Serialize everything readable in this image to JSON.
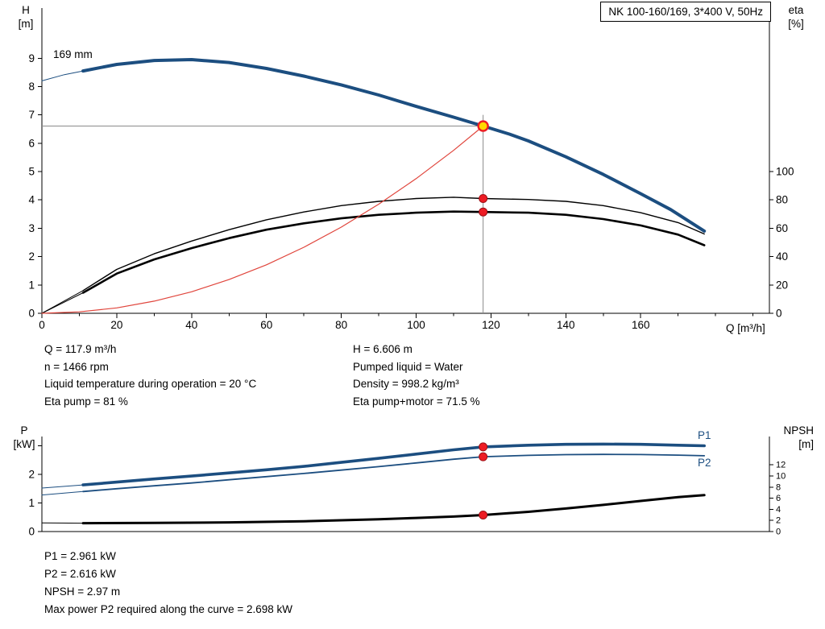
{
  "chart_data": [
    {
      "id": "pump",
      "type": "line",
      "title": "NK 100-160/169, 3*400 V, 50Hz",
      "x_unit": "Q [m³/h]",
      "y_left_unit": [
        "H",
        "[m]"
      ],
      "y_right_unit": [
        "eta",
        "[%]"
      ],
      "xlim": [
        0,
        194.4
      ],
      "ylim_left": [
        0,
        10.77
      ],
      "ylim_right": [
        0,
        215.4
      ],
      "grid": false,
      "x_ticks": [
        0,
        20,
        40,
        60,
        80,
        100,
        120,
        140,
        160
      ],
      "x_minor_ticks": [
        10,
        30,
        50,
        70,
        90,
        110,
        130,
        150,
        170,
        180,
        190
      ],
      "y_left_ticks": [
        0,
        1,
        2,
        3,
        4,
        5,
        6,
        7,
        8,
        9
      ],
      "y_right_ticks": [
        0,
        20,
        40,
        60,
        80,
        100
      ],
      "annotations": [
        {
          "text": "169 mm",
          "role": "impeller-diameter-label"
        }
      ],
      "series": [
        {
          "name": "head-leadin",
          "axis": "left",
          "color": "blue",
          "width": 1,
          "points": [
            [
              0,
              8.2
            ],
            [
              6,
              8.42
            ],
            [
              11,
              8.55
            ]
          ]
        },
        {
          "name": "head-169mm",
          "axis": "left",
          "color": "blue",
          "width": 4,
          "points": [
            [
              11,
              8.55
            ],
            [
              20,
              8.78
            ],
            [
              30,
              8.92
            ],
            [
              40,
              8.95
            ],
            [
              50,
              8.85
            ],
            [
              60,
              8.64
            ],
            [
              70,
              8.37
            ],
            [
              80,
              8.06
            ],
            [
              90,
              7.7
            ],
            [
              100,
              7.3
            ],
            [
              110,
              6.92
            ],
            [
              117.9,
              6.606
            ],
            [
              125,
              6.32
            ],
            [
              130,
              6.08
            ],
            [
              140,
              5.52
            ],
            [
              150,
              4.9
            ],
            [
              160,
              4.22
            ],
            [
              168,
              3.66
            ],
            [
              177,
              2.9
            ]
          ]
        },
        {
          "name": "eta-pump-leadin",
          "axis": "right",
          "color": "black",
          "width": 1,
          "points": [
            [
              0,
              0
            ],
            [
              11,
              16
            ]
          ]
        },
        {
          "name": "eta-pump",
          "axis": "right",
          "color": "black",
          "width": 1.4,
          "points": [
            [
              11,
              16
            ],
            [
              20,
              31
            ],
            [
              30,
              42
            ],
            [
              40,
              51
            ],
            [
              50,
              59
            ],
            [
              60,
              66
            ],
            [
              70,
              71.5
            ],
            [
              80,
              76
            ],
            [
              90,
              79
            ],
            [
              100,
              81
            ],
            [
              110,
              81.9
            ],
            [
              117.9,
              81
            ],
            [
              130,
              80.3
            ],
            [
              140,
              79
            ],
            [
              150,
              76
            ],
            [
              160,
              71
            ],
            [
              170,
              64
            ],
            [
              177,
              56
            ]
          ]
        },
        {
          "name": "eta-pump-motor-leadin",
          "axis": "right",
          "color": "black",
          "width": 1,
          "points": [
            [
              0,
              0
            ],
            [
              11,
              14.5
            ]
          ]
        },
        {
          "name": "eta-pump-motor",
          "axis": "right",
          "color": "black",
          "width": 2.6,
          "points": [
            [
              11,
              14.5
            ],
            [
              20,
              28
            ],
            [
              30,
              38
            ],
            [
              40,
              46
            ],
            [
              50,
              53
            ],
            [
              60,
              59
            ],
            [
              70,
              63.5
            ],
            [
              80,
              67
            ],
            [
              90,
              69.5
            ],
            [
              100,
              71
            ],
            [
              110,
              71.8
            ],
            [
              117.9,
              71.5
            ],
            [
              130,
              71
            ],
            [
              140,
              69.5
            ],
            [
              150,
              66.5
            ],
            [
              160,
              62
            ],
            [
              170,
              55.5
            ],
            [
              177,
              48
            ]
          ]
        },
        {
          "name": "system-curve",
          "axis": "left",
          "color": "red",
          "width": 1.2,
          "points": [
            [
              0,
              0
            ],
            [
              10,
              0.05
            ],
            [
              20,
              0.19
            ],
            [
              30,
              0.43
            ],
            [
              40,
              0.76
            ],
            [
              50,
              1.19
            ],
            [
              60,
              1.71
            ],
            [
              70,
              2.33
            ],
            [
              80,
              3.04
            ],
            [
              90,
              3.85
            ],
            [
              100,
              4.75
            ],
            [
              110,
              5.75
            ],
            [
              117.9,
              6.606
            ]
          ]
        }
      ],
      "crosshair": {
        "x": 117.9,
        "y": 6.606,
        "v_top": 7.0
      },
      "markers": [
        {
          "type": "operating-point",
          "x": 117.9,
          "axis": "left",
          "y": 6.606
        },
        {
          "type": "dot",
          "x": 117.9,
          "axis": "right",
          "y": 81
        },
        {
          "type": "dot",
          "x": 117.9,
          "axis": "right",
          "y": 71.5
        }
      ]
    },
    {
      "id": "power",
      "type": "line",
      "title": "",
      "x_unit": "",
      "y_left_unit": [
        "P",
        "[kW]"
      ],
      "y_right_unit": [
        "NPSH",
        "[m]"
      ],
      "xlim": [
        0,
        194.4
      ],
      "ylim_left": [
        0,
        3.324
      ],
      "ylim_right": [
        0,
        17.1
      ],
      "grid": false,
      "x_ticks": [],
      "x_minor_ticks": [],
      "y_left_ticks": [
        0,
        1,
        2
      ],
      "y_left_unlabeled_ticks": [
        3
      ],
      "y_right_ticks": [
        0,
        2,
        4,
        6,
        8,
        10,
        12
      ],
      "annotations": [
        {
          "text": "P1",
          "role": "p1-curve-label"
        },
        {
          "text": "P2",
          "role": "p2-curve-label"
        }
      ],
      "series": [
        {
          "name": "p1-leadin",
          "axis": "left",
          "color": "blue",
          "width": 1,
          "points": [
            [
              0,
              1.52
            ],
            [
              11,
              1.63
            ]
          ]
        },
        {
          "name": "p1",
          "axis": "left",
          "color": "blue",
          "width": 3.6,
          "points": [
            [
              11,
              1.63
            ],
            [
              20,
              1.73
            ],
            [
              30,
              1.84
            ],
            [
              40,
              1.94
            ],
            [
              50,
              2.05
            ],
            [
              60,
              2.16
            ],
            [
              70,
              2.28
            ],
            [
              80,
              2.42
            ],
            [
              90,
              2.56
            ],
            [
              100,
              2.71
            ],
            [
              110,
              2.86
            ],
            [
              117.9,
              2.961
            ],
            [
              130,
              3.02
            ],
            [
              140,
              3.05
            ],
            [
              150,
              3.06
            ],
            [
              160,
              3.05
            ],
            [
              170,
              3.02
            ],
            [
              177,
              3.0
            ]
          ]
        },
        {
          "name": "p2-leadin",
          "axis": "left",
          "color": "blue",
          "width": 1,
          "points": [
            [
              0,
              1.28
            ],
            [
              11,
              1.4
            ]
          ]
        },
        {
          "name": "p2",
          "axis": "left",
          "color": "blue",
          "width": 1.8,
          "points": [
            [
              11,
              1.4
            ],
            [
              20,
              1.5
            ],
            [
              30,
              1.6
            ],
            [
              40,
              1.7
            ],
            [
              50,
              1.81
            ],
            [
              60,
              1.92
            ],
            [
              70,
              2.03
            ],
            [
              80,
              2.15
            ],
            [
              90,
              2.27
            ],
            [
              100,
              2.4
            ],
            [
              110,
              2.53
            ],
            [
              117.9,
              2.616
            ],
            [
              130,
              2.665
            ],
            [
              140,
              2.69
            ],
            [
              150,
              2.698
            ],
            [
              160,
              2.692
            ],
            [
              170,
              2.672
            ],
            [
              177,
              2.65
            ]
          ]
        },
        {
          "name": "npsh-leadin",
          "axis": "right",
          "color": "black",
          "width": 1,
          "points": [
            [
              0,
              1.55
            ],
            [
              11,
              1.5
            ]
          ]
        },
        {
          "name": "npsh",
          "axis": "right",
          "color": "black",
          "width": 3,
          "points": [
            [
              11,
              1.5
            ],
            [
              30,
              1.55
            ],
            [
              50,
              1.65
            ],
            [
              70,
              1.85
            ],
            [
              90,
              2.2
            ],
            [
              100,
              2.45
            ],
            [
              110,
              2.7
            ],
            [
              117.9,
              2.97
            ],
            [
              130,
              3.55
            ],
            [
              140,
              4.15
            ],
            [
              150,
              4.8
            ],
            [
              160,
              5.5
            ],
            [
              170,
              6.2
            ],
            [
              177,
              6.55
            ]
          ]
        }
      ],
      "markers": [
        {
          "type": "dot",
          "x": 117.9,
          "axis": "left",
          "y": 2.961
        },
        {
          "type": "dot",
          "x": 117.9,
          "axis": "left",
          "y": 2.616
        },
        {
          "type": "dot",
          "x": 117.9,
          "axis": "right",
          "y": 2.97
        }
      ]
    }
  ],
  "info_block": {
    "col1": [
      "Q = 117.9 m³/h",
      "n = 1466 rpm",
      "Liquid temperature during operation = 20 °C",
      "Eta pump = 81 %"
    ],
    "col2": [
      "H = 6.606 m",
      "Pumped liquid = Water",
      "Density = 998.2 kg/m³",
      "Eta pump+motor = 71.5 %"
    ]
  },
  "result_block": {
    "lines": [
      "P1 = 2.961 kW",
      "P2 = 2.616 kW",
      "NPSH = 2.97 m",
      "Max power P2 required along the curve = 2.698 kW"
    ]
  },
  "colors": {
    "curve_blue": "#1c4e80",
    "curve_black": "#000000",
    "system_curve_red": "#e0453c",
    "marker_red": "#ed1c24",
    "marker_red_edge": "#9d1016",
    "marker_yellow": "#ffd800",
    "crosshair_gray": "#8a8a8a"
  }
}
